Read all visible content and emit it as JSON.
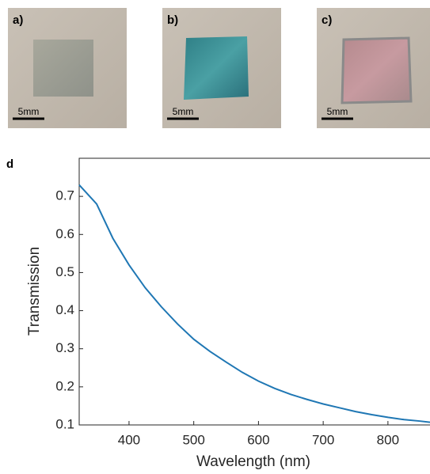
{
  "panels": [
    {
      "label": "a)",
      "scale_label": "5mm"
    },
    {
      "label": "b)",
      "scale_label": "5mm"
    },
    {
      "label": "c)",
      "scale_label": "5mm"
    }
  ],
  "chart_data": {
    "type": "line",
    "panel_label": "d",
    "x_label": "Wavelength (nm)",
    "y_label": "Transmission",
    "x": [
      323,
      350,
      375,
      400,
      425,
      450,
      475,
      500,
      525,
      550,
      575,
      600,
      625,
      650,
      675,
      700,
      725,
      750,
      775,
      800,
      825,
      850,
      865
    ],
    "values": [
      0.73,
      0.68,
      0.59,
      0.52,
      0.46,
      0.41,
      0.365,
      0.325,
      0.293,
      0.265,
      0.238,
      0.215,
      0.196,
      0.18,
      0.167,
      0.155,
      0.145,
      0.135,
      0.127,
      0.12,
      0.114,
      0.11,
      0.107
    ],
    "color": "#1f77b4",
    "xlim": [
      323,
      865
    ],
    "ylim": [
      0.1,
      0.8
    ],
    "xticks": [
      400,
      500,
      600,
      700,
      800
    ],
    "yticks": [
      0.1,
      0.2,
      0.3,
      0.4,
      0.5,
      0.6,
      0.7
    ]
  }
}
